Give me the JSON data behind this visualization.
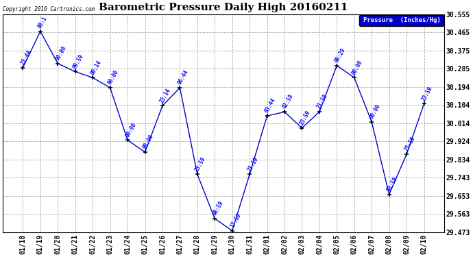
{
  "title": "Barometric Pressure Daily High 20160211",
  "copyright_text": "Copyright 2016 Cartronics.com",
  "legend_label": "Pressure  (Inches/Hg)",
  "x_labels": [
    "01/18",
    "01/19",
    "01/20",
    "01/21",
    "01/22",
    "01/23",
    "01/24",
    "01/25",
    "01/26",
    "01/27",
    "01/28",
    "01/29",
    "01/30",
    "01/31",
    "02/01",
    "02/02",
    "02/03",
    "02/04",
    "02/05",
    "02/06",
    "02/07",
    "02/08",
    "02/09",
    "02/10"
  ],
  "y_values": [
    30.29,
    30.47,
    30.31,
    30.27,
    30.24,
    30.19,
    29.93,
    29.87,
    30.1,
    30.19,
    29.76,
    29.54,
    29.48,
    29.76,
    30.05,
    30.07,
    29.99,
    30.07,
    30.3,
    30.24,
    30.02,
    29.66,
    29.86,
    30.11
  ],
  "time_labels": [
    "23:44",
    "09:1",
    "00:00",
    "09:59",
    "00:14",
    "00:00",
    "00:00",
    "00:00",
    "23:14",
    "06:44",
    "23:59",
    "08:59",
    "17:59",
    "23:59",
    "03:44",
    "02:59",
    "23:59",
    "21:59",
    "09:29",
    "00:00",
    "00:00",
    "03:59",
    "23:59",
    "23:59"
  ],
  "ylim_min": 29.473,
  "ylim_max": 30.555,
  "yticks": [
    29.473,
    29.563,
    29.653,
    29.743,
    29.834,
    29.924,
    30.014,
    30.104,
    30.194,
    30.285,
    30.375,
    30.465,
    30.555
  ],
  "line_color": "#0000CC",
  "marker_color": "#000000",
  "bg_color": "#ffffff",
  "grid_color": "#aaaaaa",
  "label_color": "#0000FF",
  "title_color": "#000000",
  "legend_bg": "#0000CC",
  "legend_fg": "#ffffff",
  "figwidth": 6.9,
  "figheight": 3.75,
  "dpi": 100
}
